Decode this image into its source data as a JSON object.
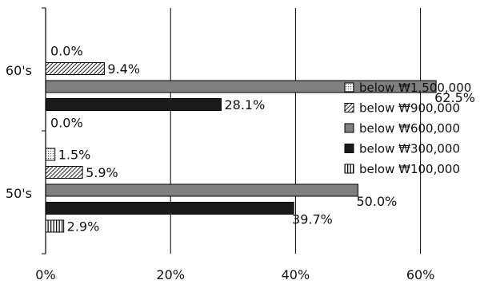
{
  "chart_data": {
    "type": "bar",
    "orientation": "horizontal",
    "title": "",
    "xlabel": "",
    "ylabel": "",
    "xlim": [
      0,
      70
    ],
    "x_ticks": [
      0,
      20,
      40,
      60
    ],
    "x_tick_labels": [
      "0%",
      "20%",
      "40%",
      "60%"
    ],
    "grid": "vertical major gridlines",
    "legend_position": "right",
    "categories": [
      "60's",
      "50's"
    ],
    "series": [
      {
        "name": "below ₩1,500,000",
        "values": [
          0.0,
          1.5
        ],
        "labels": [
          "0.0%",
          "1.5%"
        ],
        "pattern": "dots",
        "color": "#ffffff"
      },
      {
        "name": "below ₩900,000",
        "values": [
          9.4,
          5.9
        ],
        "labels": [
          "9.4%",
          "5.9%"
        ],
        "pattern": "diagonal",
        "color": "#ffffff"
      },
      {
        "name": "below ₩600,000",
        "values": [
          62.5,
          50.0
        ],
        "labels": [
          "62.5%",
          "50.0%"
        ],
        "pattern": "solid",
        "color": "#808080"
      },
      {
        "name": "below ₩300,000",
        "values": [
          28.1,
          39.7
        ],
        "labels": [
          "28.1%",
          "39.7%"
        ],
        "pattern": "solid",
        "color": "#1a1a1a"
      },
      {
        "name": "below ₩100,000",
        "values": [
          0.0,
          2.9
        ],
        "labels": [
          "0.0%",
          "2.9%"
        ],
        "pattern": "vertical",
        "color": "#ffffff"
      }
    ]
  }
}
